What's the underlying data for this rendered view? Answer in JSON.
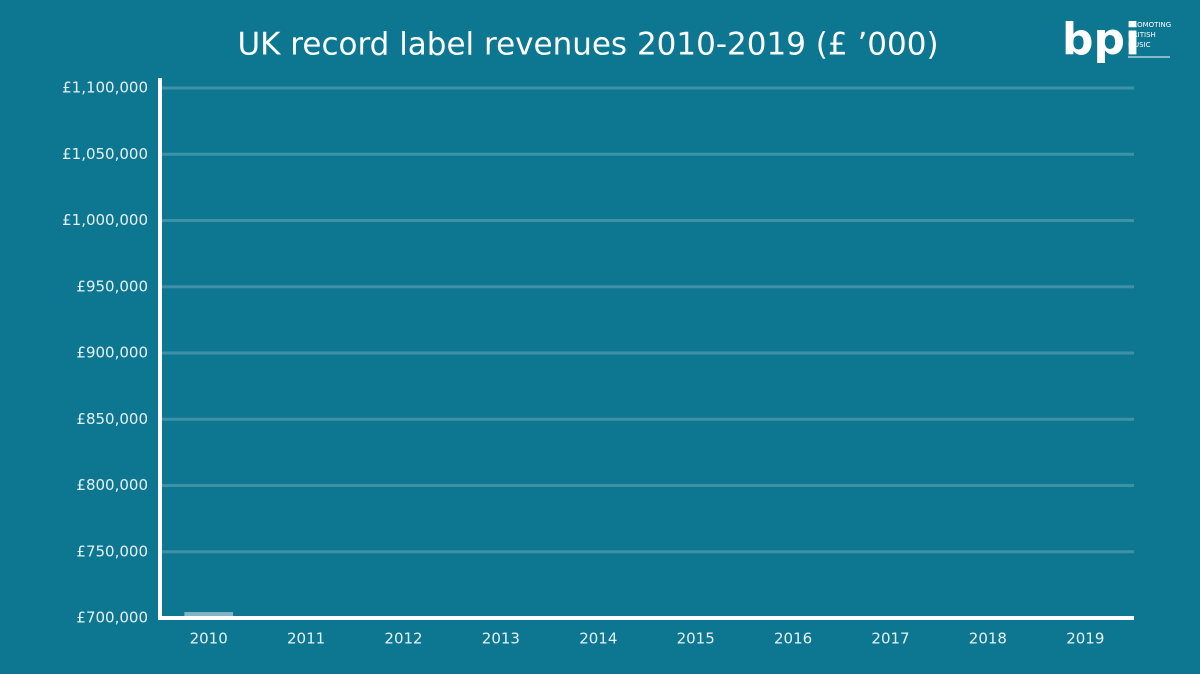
{
  "chart_data": {
    "type": "bar",
    "title": "UK record label revenues 2010-2019 (£ ’000)",
    "categories": [
      "2010",
      "2011",
      "2012",
      "2013",
      "2014",
      "2015",
      "2016",
      "2017",
      "2018",
      "2019"
    ],
    "values": [
      704500,
      null,
      null,
      null,
      null,
      null,
      null,
      null,
      null,
      null
    ],
    "color": "#b5d0da",
    "ylim": [
      700000,
      1100000
    ],
    "yticks": [
      {
        "value": 700000,
        "label": "£700,000"
      },
      {
        "value": 750000,
        "label": "£750,000"
      },
      {
        "value": 800000,
        "label": "£800,000"
      },
      {
        "value": 850000,
        "label": "£850,000"
      },
      {
        "value": 900000,
        "label": "£900,000"
      },
      {
        "value": 950000,
        "label": "£950,000"
      },
      {
        "value": 1000000,
        "label": "£1,000,000"
      },
      {
        "value": 1050000,
        "label": "£1,050,000"
      },
      {
        "value": 1100000,
        "label": "£1,100,000"
      }
    ],
    "grid": true
  },
  "logo": {
    "name": "bpi",
    "tagline": [
      "PROMOTING",
      "BRITISH",
      "MUSIC"
    ]
  }
}
